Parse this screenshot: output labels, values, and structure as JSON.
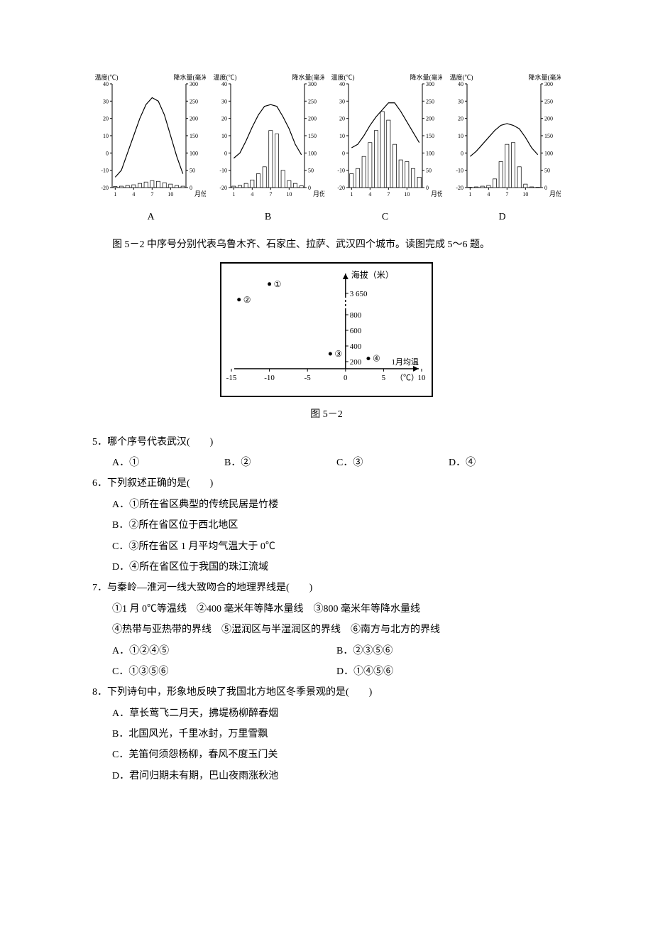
{
  "charts": {
    "common": {
      "type": "combo_bar_line",
      "x_label": "月份",
      "temp_label": "温度(℃)",
      "precip_label": "降水量(毫米)",
      "temp_range": [
        -20,
        40
      ],
      "temp_ticks": [
        -20,
        -10,
        0,
        10,
        20,
        30,
        40
      ],
      "precip_range": [
        0,
        300
      ],
      "precip_ticks": [
        0,
        50,
        100,
        150,
        200,
        250,
        300
      ],
      "x_ticks": [
        1,
        4,
        7,
        10
      ],
      "line_color": "#000000",
      "bar_fill": "#ffffff",
      "bar_stroke": "#000000",
      "axis_color": "#000000",
      "font_size_axis": 8,
      "font_size_label": 9
    },
    "items": [
      {
        "key": "A",
        "temps": [
          -14,
          -10,
          0,
          10,
          20,
          28,
          32,
          30,
          22,
          10,
          -2,
          -12
        ],
        "precip": [
          3,
          4,
          6,
          8,
          12,
          16,
          20,
          18,
          14,
          10,
          6,
          4
        ]
      },
      {
        "key": "B",
        "temps": [
          -3,
          0,
          7,
          15,
          22,
          27,
          28,
          27,
          21,
          14,
          5,
          -1
        ],
        "precip": [
          4,
          6,
          12,
          22,
          40,
          60,
          165,
          155,
          50,
          20,
          12,
          5
        ]
      },
      {
        "key": "C",
        "temps": [
          3,
          5,
          10,
          16,
          21,
          25,
          29,
          29,
          24,
          18,
          12,
          6
        ],
        "precip": [
          40,
          55,
          90,
          130,
          165,
          220,
          195,
          125,
          80,
          75,
          55,
          30
        ]
      },
      {
        "key": "D",
        "temps": [
          -2,
          1,
          5,
          9,
          13,
          16,
          17,
          16,
          14,
          9,
          3,
          -1
        ],
        "precip": [
          1,
          2,
          4,
          6,
          25,
          75,
          125,
          130,
          60,
          10,
          2,
          1
        ]
      }
    ]
  },
  "intro_text": "图 5－2 中序号分别代表乌鲁木齐、石家庄、拉萨、武汉四个城市。读图完成 5～6 题。",
  "fig52": {
    "type": "scatter",
    "caption": "图 5－2",
    "x_label": "1月均温（℃）",
    "y_label": "海拔（米）",
    "x_ticks": [
      -15,
      -10,
      -5,
      0,
      5,
      10
    ],
    "y_ticks": [
      200,
      400,
      600,
      800,
      "3 650"
    ],
    "border_color": "#000000",
    "border_width": 2,
    "point_color": "#000000",
    "points": [
      {
        "id": "①",
        "x": -10,
        "yIndex": 4.6
      },
      {
        "id": "②",
        "x": -14,
        "yIndex": 3.6
      },
      {
        "id": "③",
        "x": -2,
        "yIndex": 0.5
      },
      {
        "id": "④",
        "x": 3,
        "yIndex": 0.2
      }
    ]
  },
  "questions": [
    {
      "num": "5．",
      "stem": "哪个序号代表武汉(　　)",
      "layout": "four",
      "opts": [
        "A．①",
        "B．②",
        "C．③",
        "D．④"
      ]
    },
    {
      "num": "6．",
      "stem": "下列叙述正确的是(　　)",
      "layout": "list",
      "opts": [
        "A．①所在省区典型的传统民居是竹楼",
        "B．②所在省区位于西北地区",
        "C．③所在省区 1 月平均气温大于 0℃",
        "D．④所在省区位于我国的珠江流域"
      ]
    },
    {
      "num": "7．",
      "stem": "与秦岭—淮河一线大致吻合的地理界线是(　　)",
      "sub": [
        "①1 月 0℃等温线　②400 毫米年等降水量线　③800 毫米年等降水量线",
        "④热带与亚热带的界线　⑤湿润区与半湿润区的界线　⑥南方与北方的界线"
      ],
      "layout": "two",
      "opts": [
        "A．①②④⑤",
        "B．②③⑤⑥",
        "C．①③⑤⑥",
        "D．①④⑤⑥"
      ]
    },
    {
      "num": "8．",
      "stem": "下列诗句中，形象地反映了我国北方地区冬季景观的是(　　)",
      "layout": "list",
      "opts": [
        "A．草长莺飞二月天，拂堤杨柳醉春烟",
        "B．北国风光，千里冰封，万里雪飘",
        "C．羌笛何须怨杨柳，春风不度玉门关",
        "D．君问归期未有期，巴山夜雨涨秋池"
      ]
    }
  ]
}
